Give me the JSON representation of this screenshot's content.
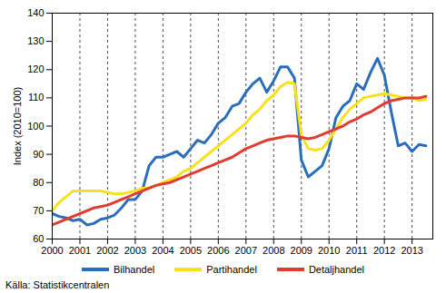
{
  "chart_data": {
    "type": "line",
    "y_label": "Index (2010=100)",
    "caption": "Källa: Statistikcentralen",
    "x": [
      2000,
      2000.25,
      2000.5,
      2000.75,
      2001,
      2001.25,
      2001.5,
      2001.75,
      2002,
      2002.25,
      2002.5,
      2002.75,
      2003,
      2003.25,
      2003.5,
      2003.75,
      2004,
      2004.25,
      2004.5,
      2004.75,
      2005,
      2005.25,
      2005.5,
      2005.75,
      2006,
      2006.25,
      2006.5,
      2006.75,
      2007,
      2007.25,
      2007.5,
      2007.75,
      2008,
      2008.25,
      2008.5,
      2008.75,
      2009,
      2009.25,
      2009.5,
      2009.75,
      2010,
      2010.25,
      2010.5,
      2010.75,
      2011,
      2011.25,
      2011.5,
      2011.75,
      2012,
      2012.25,
      2012.5,
      2012.75,
      2013,
      2013.25,
      2013.5
    ],
    "series": [
      {
        "name": "Bilhandel",
        "color": "#2a6ebb",
        "values": [
          69,
          68,
          67.5,
          66.5,
          67,
          65,
          65.5,
          67,
          67.5,
          68.5,
          71,
          74,
          74,
          77,
          86,
          89,
          89,
          90,
          91,
          89,
          92,
          95,
          94,
          97,
          101,
          103,
          107,
          108,
          112,
          115,
          117,
          112,
          116,
          121,
          121,
          117,
          88,
          82,
          84,
          86,
          92,
          103,
          107,
          109,
          115,
          113,
          119,
          124,
          118,
          105,
          93,
          94,
          91,
          93.5,
          93
        ]
      },
      {
        "name": "Partihandel",
        "color": "#f7e01c",
        "values": [
          70,
          73,
          75,
          77,
          77,
          77,
          77,
          77,
          76.5,
          76,
          76,
          76.5,
          77,
          78,
          78,
          79,
          80,
          81,
          82,
          84,
          85,
          87,
          89,
          91,
          93,
          95,
          97,
          99,
          101,
          104,
          106,
          109,
          111,
          114,
          115.5,
          115,
          97,
          92,
          91.5,
          92,
          95,
          99,
          103,
          106,
          108,
          110,
          110.5,
          111,
          111.5,
          111,
          110.5,
          110,
          110,
          109,
          109.5
        ]
      },
      {
        "name": "Detaljhandel",
        "color": "#e03c31",
        "values": [
          65,
          66,
          67,
          68,
          69,
          70,
          71,
          71.5,
          72,
          73,
          74,
          75,
          76,
          77,
          78,
          79,
          79.5,
          80,
          81,
          82,
          83,
          84,
          85,
          86,
          87,
          88,
          89,
          90.5,
          92,
          93,
          94,
          95,
          95.5,
          96,
          96.5,
          96.5,
          96,
          95.5,
          96,
          97,
          98,
          99,
          100,
          101.5,
          102.5,
          104,
          105,
          106.5,
          108,
          109,
          109.5,
          110,
          110,
          110,
          110.5
        ]
      }
    ],
    "xlim": [
      2000,
      2013.75
    ],
    "xticks": [
      2000,
      2001,
      2002,
      2003,
      2004,
      2005,
      2006,
      2007,
      2008,
      2009,
      2010,
      2011,
      2012,
      2013
    ],
    "ylim": [
      60,
      140
    ],
    "yticks": [
      60,
      70,
      80,
      90,
      100,
      110,
      120,
      130,
      140
    ],
    "grid": true,
    "legend": "bottom"
  }
}
